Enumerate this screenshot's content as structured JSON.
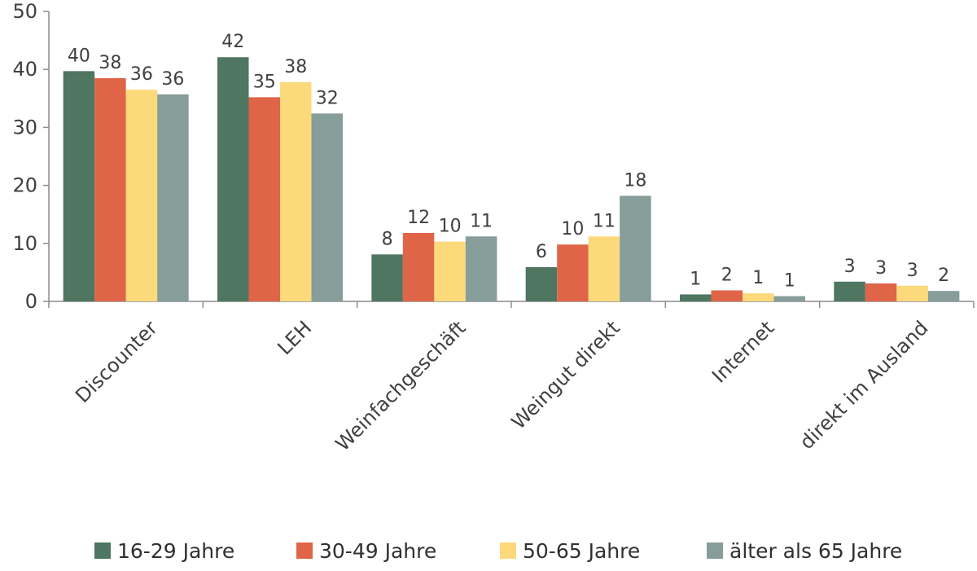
{
  "chart_data": {
    "type": "bar",
    "categories": [
      "Discounter",
      "LEH",
      "Weinfachgeschäft",
      "Weingut direkt",
      "Internet",
      "direkt im Ausland"
    ],
    "series": [
      {
        "name": "16-29 Jahre",
        "color": "#4e7660",
        "values": [
          39.7,
          42.1,
          8.1,
          5.9,
          1.2,
          3.4
        ],
        "labels": [
          "40",
          "42",
          "8",
          "6",
          "1",
          "3"
        ]
      },
      {
        "name": "30-49 Jahre",
        "color": "#df6448",
        "values": [
          38.5,
          35.2,
          11.8,
          9.8,
          1.9,
          3.1
        ],
        "labels": [
          "38",
          "35",
          "12",
          "10",
          "2",
          "3"
        ]
      },
      {
        "name": "50-65 Jahre",
        "color": "#fcd97b",
        "values": [
          36.5,
          37.8,
          10.3,
          11.2,
          1.4,
          2.7
        ],
        "labels": [
          "36",
          "38",
          "10",
          "11",
          "1",
          "3"
        ]
      },
      {
        "name": "älter als 65 Jahre",
        "color": "#869d99",
        "values": [
          35.7,
          32.4,
          11.2,
          18.2,
          0.9,
          1.8
        ],
        "labels": [
          "36",
          "32",
          "11",
          "18",
          "1",
          "2"
        ]
      }
    ],
    "ylim": [
      0,
      50
    ],
    "yticks": [
      "0",
      "10",
      "20",
      "30",
      "40",
      "50"
    ],
    "grid": false,
    "legend_position": "bottom",
    "xlabel": "",
    "ylabel": ""
  }
}
